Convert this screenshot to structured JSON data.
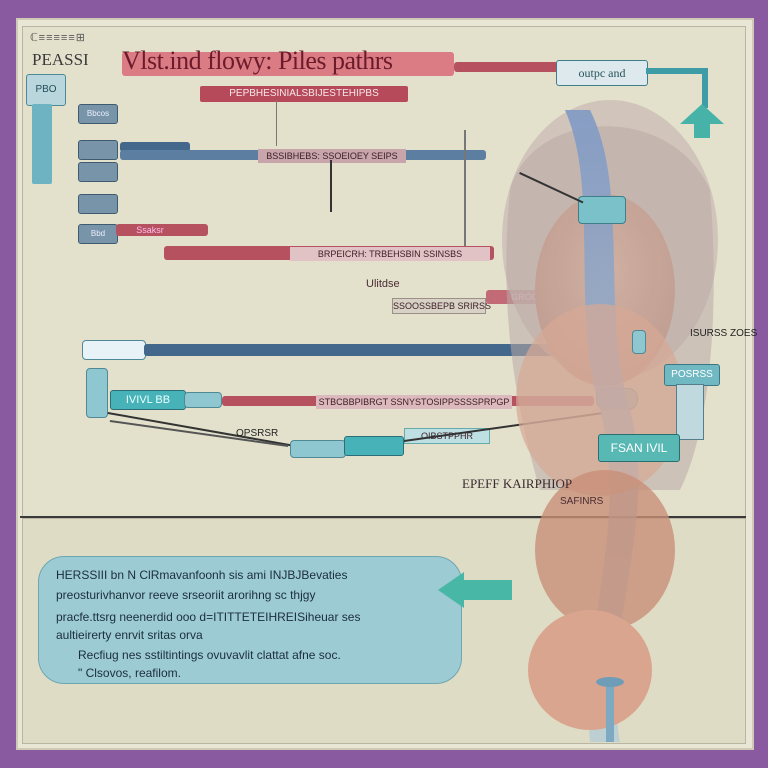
{
  "diagram": {
    "top_tag": "ℂ≡≡≡≡≡⊞",
    "pre_title": "PEASSI",
    "title": "Vlst.ind flowy: Piles pathrs",
    "subtitle": "PEPBHESINIALSBIJESTEHIPBS",
    "output_label": "outpc and",
    "side_box_label": "PBO",
    "chips": [
      "Bbcos",
      "",
      "",
      "Bbd"
    ],
    "bar_labels": {
      "blue_bar_1": "BSSIBHEBS: SSOEIOEY SEIPS",
      "red_bar_1": "Ssaksr",
      "red_bar_2": "BRPEICRH: TRBEHSBIN SSINSBS",
      "grey_bar": "SSOOSSBEPB SRIRSS",
      "red_bar_3": "STBCBBPIBRGT SSNYSTOSIPPSSSSPRPGP",
      "small_label": "Ulitdse",
      "groov_label": "GROOV",
      "capsule_label": "BEESRISS",
      "teal_node_1": "IVIVL  BB",
      "teal_node_2": "OIBSTPPHR",
      "wire_label": "OPSRSR",
      "right_tag": "ISURSS  ZOES",
      "right_tag_2": "POSRSS",
      "status": "FSAN  IVIL",
      "bottom_label": "EPEFF KAIRPHIOP",
      "bottom_label_2": "SAFINRS"
    },
    "info": {
      "lines": [
        "HERSSIII bn N ClRmavanfoonh sis ami INJBJBevaties",
        "preosturivhanvor reeve srseoriit arorihng sc thjgy",
        "pracfe.ttsrg neenerdid ooo d=ITITTETEIHREISiheuar ses",
        "aultieirerty enrvit sritas orva",
        "Recfiug nes sstiltintings ovuvavlit clattat afne soc.",
        "\" Clsovos, reafilom."
      ]
    },
    "colors": {
      "background": "#8a5aa0",
      "panel": "#e3e1cc",
      "red_pipe": "#b6515f",
      "blue_pipe": "#44688c",
      "teal": "#47b3b8",
      "info_box": "#9ccbd3"
    }
  }
}
